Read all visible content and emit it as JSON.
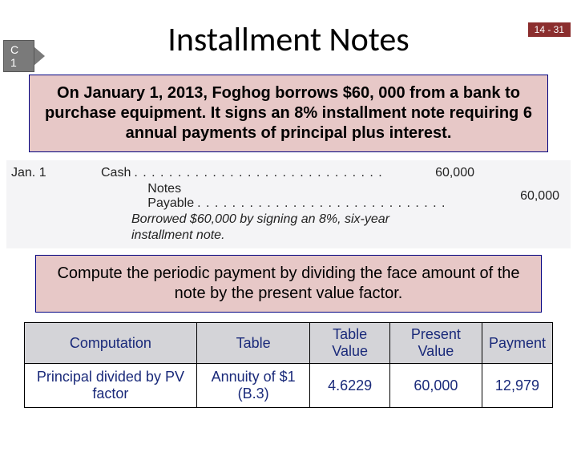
{
  "slide_number": "14 - 31",
  "objective_label": "C 1",
  "title": "Installment Notes",
  "scenario_text": "On January 1, 2013, Foghog borrows $60, 000 from a bank to purchase equipment. It signs an 8% installment note requiring 6 annual payments of principal plus interest.",
  "journal": {
    "date": "Jan. 1",
    "debit_account": "Cash",
    "debit_amount": "60,000",
    "credit_account": "Notes Payable",
    "credit_amount": "60,000",
    "note_line1": "Borrowed $60,000 by signing an 8%, six-year",
    "note_line2": "installment note."
  },
  "instruction_text": "Compute the periodic payment by dividing the face amount of the note by the present value factor.",
  "calc_table": {
    "headers": [
      "Computation",
      "Table",
      "Table Value",
      "Present Value",
      "Payment"
    ],
    "row": [
      "Principal divided by PV factor",
      "Annuity of $1 (B.3)",
      "4.6229",
      "60,000",
      "12,979"
    ]
  },
  "colors": {
    "slide_number_bg": "#8b2e2e",
    "objective_bg": "#7a7a7a",
    "box_bg": "#e7c8c7",
    "box_border": "#000080",
    "journal_bg": "#f4f4f6",
    "table_header_bg": "#d4d4d8",
    "table_text": "#1a2a7a"
  }
}
